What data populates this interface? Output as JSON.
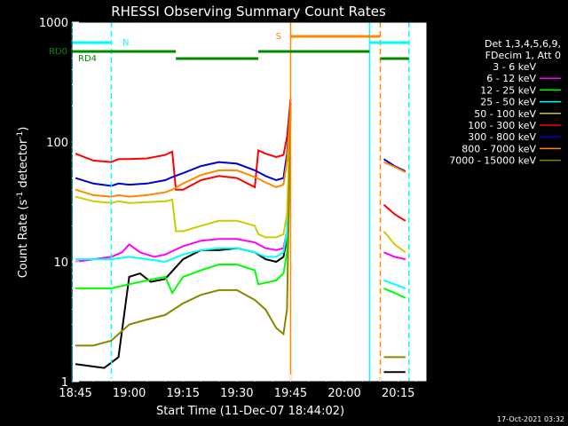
{
  "chart_data": {
    "type": "line",
    "title": "RHESSI Observing Summary Count Rates",
    "xlabel": "Start Time (11-Dec-07 18:44:02)",
    "ylabel_prefix": "Count Rate (s",
    "ylabel_sup": "-1",
    "ylabel_suffix": " detector",
    "ylabel_close": ")",
    "y_scale": "log",
    "ylim": [
      1,
      1000
    ],
    "xlim": [
      "18:44",
      "20:23"
    ],
    "x_ticks": [
      "18:45",
      "19:00",
      "19:15",
      "19:30",
      "19:45",
      "20:00",
      "20:15"
    ],
    "y_ticks": [
      "1",
      "10",
      "100",
      "1000"
    ],
    "footer_date": "17-Oct-2021 03:32",
    "legend": {
      "header": [
        "Det 1,3,4,5,6,9,",
        "FDecim 1, Att 0"
      ],
      "entries": [
        {
          "label": "3 - 6 keV",
          "color": "#000000"
        },
        {
          "label": "6 - 12 keV",
          "color": "#ff00ff"
        },
        {
          "label": "12 - 25 keV",
          "color": "#00ff00"
        },
        {
          "label": "25 - 50 keV",
          "color": "#00ffff"
        },
        {
          "label": "50 - 100 keV",
          "color": "#cccc00"
        },
        {
          "label": "100 - 300 keV",
          "color": "#ff0000"
        },
        {
          "label": "300 - 800 keV",
          "color": "#0000cc"
        },
        {
          "label": "800 - 7000 keV",
          "color": "#ff8800"
        },
        {
          "label": "7000 - 15000 keV",
          "color": "#888800"
        }
      ]
    },
    "markers": {
      "rd0_label": "RD0",
      "rd4_label": "RD4",
      "n_label": "N",
      "s_label": "S",
      "night_color": "#00ffff",
      "saa_color": "#ff8800",
      "decim_color": "#008800",
      "night_lines": [
        {
          "t": "18:44",
          "style": "solid"
        },
        {
          "t": "18:55",
          "style": "dashed"
        },
        {
          "t": "20:07",
          "style": "solid"
        },
        {
          "t": "20:18",
          "style": "dashed"
        }
      ],
      "saa_lines": [
        {
          "t": "19:45",
          "style": "solid"
        },
        {
          "t": "20:10",
          "style": "dashed"
        }
      ],
      "night_bars": [
        [
          "18:44",
          "18:55"
        ],
        [
          "20:07",
          "20:18"
        ]
      ],
      "saa_bars": [
        [
          "19:45",
          "20:10"
        ]
      ],
      "rd0_bars": [
        [
          "18:44",
          "19:13"
        ],
        [
          "19:13",
          "19:36"
        ],
        [
          "19:36",
          "20:07"
        ],
        [
          "20:10",
          "20:18"
        ]
      ]
    },
    "data_gaps": [
      [
        "18:44",
        "18:45"
      ],
      [
        "19:45",
        "20:11"
      ]
    ],
    "series": [
      {
        "name": "3 - 6 keV",
        "color": "#000000",
        "points": [
          [
            "18:45",
            1.4
          ],
          [
            "18:53",
            1.3
          ],
          [
            "18:57",
            1.6
          ],
          [
            "19:00",
            7.5
          ],
          [
            "19:03",
            8.0
          ],
          [
            "19:06",
            6.8
          ],
          [
            "19:10",
            7.2
          ],
          [
            "19:15",
            10.5
          ],
          [
            "19:20",
            12.5
          ],
          [
            "19:25",
            12.5
          ],
          [
            "19:30",
            13.0
          ],
          [
            "19:35",
            12.0
          ],
          [
            "19:38",
            10.5
          ],
          [
            "19:41",
            10.0
          ],
          [
            "19:43",
            11.0
          ],
          [
            "19:44",
            16
          ],
          [
            "19:45",
            200
          ],
          [
            "20:11",
            1.2
          ],
          [
            "20:14",
            1.2
          ],
          [
            "20:17",
            1.2
          ]
        ]
      },
      {
        "name": "6 - 12 keV",
        "color": "#ff00ff",
        "points": [
          [
            "18:45",
            10
          ],
          [
            "18:55",
            11
          ],
          [
            "18:58",
            12
          ],
          [
            "19:00",
            14
          ],
          [
            "19:03",
            12
          ],
          [
            "19:07",
            11
          ],
          [
            "19:10",
            11.5
          ],
          [
            "19:15",
            13.5
          ],
          [
            "19:20",
            15
          ],
          [
            "19:25",
            15.5
          ],
          [
            "19:30",
            15.5
          ],
          [
            "19:35",
            14.5
          ],
          [
            "19:38",
            13
          ],
          [
            "19:41",
            12.5
          ],
          [
            "19:43",
            13
          ],
          [
            "19:44",
            18
          ],
          [
            "19:45",
            200
          ],
          [
            "20:11",
            12
          ],
          [
            "20:14",
            11
          ],
          [
            "20:17",
            10.5
          ]
        ]
      },
      {
        "name": "12 - 25 keV",
        "color": "#00ff00",
        "points": [
          [
            "18:45",
            6.0
          ],
          [
            "18:55",
            6.0
          ],
          [
            "19:00",
            6.5
          ],
          [
            "19:05",
            7.0
          ],
          [
            "19:10",
            7.5
          ],
          [
            "19:12",
            5.5
          ],
          [
            "19:15",
            7.5
          ],
          [
            "19:20",
            8.5
          ],
          [
            "19:25",
            9.5
          ],
          [
            "19:30",
            9.5
          ],
          [
            "19:35",
            8.5
          ],
          [
            "19:36",
            6.5
          ],
          [
            "19:41",
            7.0
          ],
          [
            "19:43",
            8.0
          ],
          [
            "19:44",
            12
          ],
          [
            "19:45",
            200
          ],
          [
            "20:11",
            6
          ],
          [
            "20:14",
            5.5
          ],
          [
            "20:17",
            5
          ]
        ]
      },
      {
        "name": "25 - 50 keV",
        "color": "#00ffff",
        "points": [
          [
            "18:45",
            10.5
          ],
          [
            "18:55",
            10.5
          ],
          [
            "19:00",
            11.0
          ],
          [
            "19:05",
            10.5
          ],
          [
            "19:10",
            10.0
          ],
          [
            "19:15",
            11.5
          ],
          [
            "19:20",
            12.5
          ],
          [
            "19:25",
            13.0
          ],
          [
            "19:30",
            13.0
          ],
          [
            "19:35",
            12.0
          ],
          [
            "19:38",
            11.0
          ],
          [
            "19:41",
            11.0
          ],
          [
            "19:43",
            12.0
          ],
          [
            "19:44",
            18
          ],
          [
            "19:45",
            200
          ],
          [
            "20:11",
            7
          ],
          [
            "20:14",
            6.5
          ],
          [
            "20:17",
            6
          ]
        ]
      },
      {
        "name": "50 - 100 keV",
        "color": "#cccc00",
        "points": [
          [
            "18:45",
            35
          ],
          [
            "18:50",
            32
          ],
          [
            "18:55",
            31
          ],
          [
            "18:57",
            32
          ],
          [
            "19:00",
            31
          ],
          [
            "19:05",
            31.5
          ],
          [
            "19:10",
            32
          ],
          [
            "19:12",
            33
          ],
          [
            "19:13",
            18
          ],
          [
            "19:15",
            18
          ],
          [
            "19:20",
            20
          ],
          [
            "19:25",
            22
          ],
          [
            "19:30",
            22
          ],
          [
            "19:35",
            20
          ],
          [
            "19:36",
            17
          ],
          [
            "19:38",
            16
          ],
          [
            "19:41",
            16
          ],
          [
            "19:43",
            17
          ],
          [
            "19:44",
            25
          ],
          [
            "19:45",
            200
          ],
          [
            "20:11",
            18
          ],
          [
            "20:14",
            14
          ],
          [
            "20:17",
            12
          ]
        ]
      },
      {
        "name": "100 - 300 keV",
        "color": "#ff0000",
        "points": [
          [
            "18:45",
            80
          ],
          [
            "18:50",
            70
          ],
          [
            "18:55",
            68
          ],
          [
            "18:57",
            72
          ],
          [
            "19:00",
            72
          ],
          [
            "19:05",
            73
          ],
          [
            "19:10",
            78
          ],
          [
            "19:12",
            83
          ],
          [
            "19:13",
            40
          ],
          [
            "19:15",
            40
          ],
          [
            "19:20",
            48
          ],
          [
            "19:25",
            52
          ],
          [
            "19:30",
            50
          ],
          [
            "19:35",
            42
          ],
          [
            "19:36",
            85
          ],
          [
            "19:38",
            80
          ],
          [
            "19:41",
            75
          ],
          [
            "19:43",
            78
          ],
          [
            "19:44",
            110
          ],
          [
            "19:45",
            230
          ],
          [
            "20:11",
            30
          ],
          [
            "20:14",
            25
          ],
          [
            "20:17",
            22
          ]
        ]
      },
      {
        "name": "300 - 800 keV",
        "color": "#0000cc",
        "points": [
          [
            "18:45",
            50
          ],
          [
            "18:50",
            45
          ],
          [
            "18:55",
            43
          ],
          [
            "18:57",
            45
          ],
          [
            "19:00",
            44
          ],
          [
            "19:05",
            45
          ],
          [
            "19:10",
            48
          ],
          [
            "19:12",
            51
          ],
          [
            "19:15",
            55
          ],
          [
            "19:20",
            63
          ],
          [
            "19:25",
            68
          ],
          [
            "19:30",
            66
          ],
          [
            "19:35",
            58
          ],
          [
            "19:38",
            52
          ],
          [
            "19:41",
            48
          ],
          [
            "19:43",
            50
          ],
          [
            "19:44",
            80
          ],
          [
            "19:45",
            210
          ],
          [
            "20:11",
            72
          ],
          [
            "20:14",
            63
          ],
          [
            "20:17",
            57
          ]
        ]
      },
      {
        "name": "800 - 7000 keV",
        "color": "#ff8800",
        "points": [
          [
            "18:45",
            40
          ],
          [
            "18:50",
            36
          ],
          [
            "18:55",
            35
          ],
          [
            "18:57",
            36
          ],
          [
            "19:00",
            35
          ],
          [
            "19:05",
            36
          ],
          [
            "19:10",
            38
          ],
          [
            "19:12",
            40
          ],
          [
            "19:15",
            45
          ],
          [
            "19:20",
            53
          ],
          [
            "19:25",
            58
          ],
          [
            "19:30",
            58
          ],
          [
            "19:35",
            51
          ],
          [
            "19:38",
            46
          ],
          [
            "19:41",
            42
          ],
          [
            "19:43",
            44
          ],
          [
            "19:44",
            70
          ],
          [
            "19:45",
            205
          ],
          [
            "20:11",
            68
          ],
          [
            "20:14",
            62
          ],
          [
            "20:17",
            56
          ]
        ]
      },
      {
        "name": "7000 - 15000 keV",
        "color": "#888800",
        "points": [
          [
            "18:45",
            2.0
          ],
          [
            "18:50",
            2.0
          ],
          [
            "18:55",
            2.2
          ],
          [
            "19:00",
            3.0
          ],
          [
            "19:05",
            3.3
          ],
          [
            "19:10",
            3.6
          ],
          [
            "19:15",
            4.5
          ],
          [
            "19:20",
            5.3
          ],
          [
            "19:25",
            5.8
          ],
          [
            "19:30",
            5.8
          ],
          [
            "19:35",
            4.8
          ],
          [
            "19:38",
            4.0
          ],
          [
            "19:41",
            2.8
          ],
          [
            "19:43",
            2.5
          ],
          [
            "19:44",
            4
          ],
          [
            "19:45",
            200
          ],
          [
            "20:11",
            1.6
          ],
          [
            "20:14",
            1.6
          ],
          [
            "20:17",
            1.6
          ]
        ]
      }
    ]
  }
}
